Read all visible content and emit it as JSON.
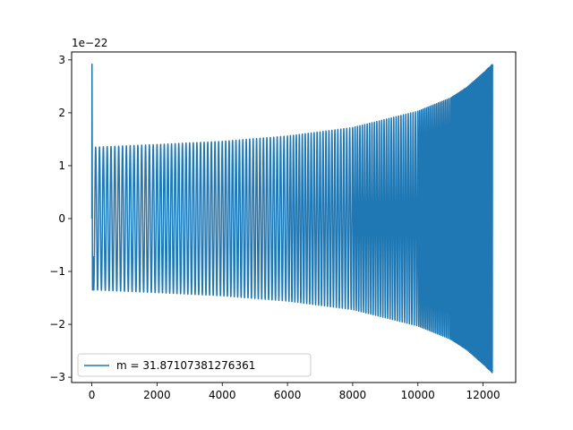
{
  "chart_data": {
    "type": "line",
    "title": "",
    "xlabel": "",
    "ylabel": "",
    "y_offset_label": "1e−22",
    "xlim": [
      -620,
      13000
    ],
    "ylim": [
      -3.1,
      3.15
    ],
    "x_ticks": [
      0,
      2000,
      4000,
      6000,
      8000,
      10000,
      12000
    ],
    "x_tick_labels": [
      "0",
      "2000",
      "4000",
      "6000",
      "8000",
      "10000",
      "12000"
    ],
    "y_ticks": [
      -3,
      -2,
      -1,
      0,
      1,
      2,
      3
    ],
    "y_tick_labels": [
      "−3",
      "−2",
      "−1",
      "0",
      "1",
      "2",
      "3"
    ],
    "grid": false,
    "legend_position": "lower-left",
    "series": [
      {
        "name": "m = 31.87107381276361",
        "color": "#1f77b4",
        "x_start": 0,
        "x_end": 12290,
        "initial_spike": 2.92,
        "envelope": [
          {
            "x": 100,
            "y": 1.35
          },
          {
            "x": 2000,
            "y": 1.4
          },
          {
            "x": 4000,
            "y": 1.46
          },
          {
            "x": 6000,
            "y": 1.56
          },
          {
            "x": 8000,
            "y": 1.72
          },
          {
            "x": 10000,
            "y": 2.03
          },
          {
            "x": 11000,
            "y": 2.28
          },
          {
            "x": 11500,
            "y": 2.48
          },
          {
            "x": 12000,
            "y": 2.75
          },
          {
            "x": 12290,
            "y": 2.92
          }
        ],
        "cycles": [
          {
            "x": 0,
            "n": 0
          },
          {
            "x": 2000,
            "n": 17
          },
          {
            "x": 4000,
            "n": 35
          },
          {
            "x": 6000,
            "n": 54
          },
          {
            "x": 8000,
            "n": 76
          },
          {
            "x": 10000,
            "n": 103
          },
          {
            "x": 11000,
            "n": 122
          },
          {
            "x": 12000,
            "n": 150
          },
          {
            "x": 12290,
            "n": 165
          }
        ]
      }
    ]
  }
}
